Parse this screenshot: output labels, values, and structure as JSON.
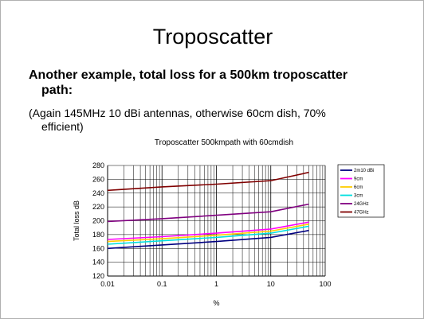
{
  "slide": {
    "title": "Troposcatter",
    "bullet1_line1": "Another example, total loss for a 500km troposcatter",
    "bullet1_line2": "path:",
    "bullet2_line1": "(Again 145MHz 10 dBi antennas, otherwise 60cm dish, 70%",
    "bullet2_line2": "efficient)"
  },
  "chart_data": {
    "type": "line",
    "title": "Troposcatter 500kmpath with 60cmdish",
    "xlabel": "%",
    "ylabel": "Total loss dB",
    "xscale": "log",
    "xlim": [
      0.01,
      100
    ],
    "ylim": [
      120,
      280
    ],
    "xticks": [
      "0.01",
      "0.1",
      "1",
      "10",
      "100"
    ],
    "yticks": [
      "120",
      "140",
      "160",
      "180",
      "200",
      "220",
      "240",
      "260",
      "280"
    ],
    "grid": true,
    "legend_position": "right",
    "x": [
      0.01,
      0.1,
      1,
      10,
      50
    ],
    "series": [
      {
        "name": "2m10 dBi",
        "color": "#000080",
        "values": [
          160,
          165,
          170,
          176,
          186
        ]
      },
      {
        "name": "9cm",
        "color": "#ff00ff",
        "values": [
          173,
          177,
          182,
          188,
          198
        ]
      },
      {
        "name": "6cm",
        "color": "#ffcc00",
        "values": [
          170,
          174,
          179,
          185,
          195
        ]
      },
      {
        "name": "3cm",
        "color": "#00e0e0",
        "values": [
          166,
          171,
          176,
          182,
          192
        ]
      },
      {
        "name": "24GHz",
        "color": "#800080",
        "values": [
          199,
          203,
          208,
          213,
          224
        ]
      },
      {
        "name": "47GHz",
        "color": "#800000",
        "values": [
          244,
          249,
          253,
          258,
          270
        ]
      }
    ]
  }
}
